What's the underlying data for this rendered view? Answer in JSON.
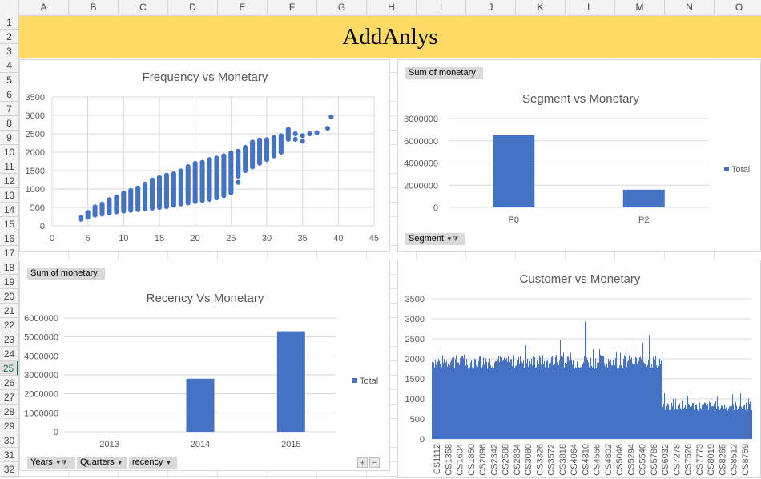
{
  "sheet": {
    "columns": [
      "A",
      "B",
      "C",
      "D",
      "E",
      "F",
      "G",
      "H",
      "I",
      "J",
      "K",
      "L",
      "M",
      "N",
      "O"
    ],
    "rows": [
      "1",
      "2",
      "3",
      "4",
      "5",
      "6",
      "7",
      "8",
      "9",
      "10",
      "11",
      "12",
      "13",
      "14",
      "15",
      "16",
      "17",
      "18",
      "19",
      "20",
      "21",
      "22",
      "23",
      "24",
      "25",
      "26",
      "27",
      "28",
      "29",
      "30",
      "31",
      "32"
    ],
    "active_row": "25",
    "banner_title": "AddAnlys",
    "banner_color": "#ffd966"
  },
  "pivot": {
    "sum_label": "Sum of monetary",
    "segment_field": "Segment",
    "years_field": "Years",
    "quarters_field": "Quarters",
    "recency_field": "recency",
    "expand_label": "+",
    "collapse_label": "−"
  },
  "chart_data": [
    {
      "type": "scatter",
      "title": "Frequency vs Monetary",
      "xlim": [
        0,
        45
      ],
      "ylim": [
        0,
        3500
      ],
      "xticks": [
        0,
        5,
        10,
        15,
        20,
        25,
        30,
        35,
        40,
        45
      ],
      "yticks": [
        0,
        500,
        1000,
        1500,
        2000,
        2500,
        3000,
        3500
      ],
      "grid": true,
      "color": "#4472c4",
      "ranges": [
        [
          4,
          180,
          250
        ],
        [
          5,
          230,
          380
        ],
        [
          6,
          290,
          520
        ],
        [
          7,
          320,
          620
        ],
        [
          8,
          350,
          720
        ],
        [
          9,
          380,
          820
        ],
        [
          10,
          400,
          920
        ],
        [
          11,
          420,
          1000
        ],
        [
          12,
          440,
          1060
        ],
        [
          13,
          460,
          1150
        ],
        [
          14,
          480,
          1250
        ],
        [
          15,
          500,
          1350
        ],
        [
          16,
          520,
          1400
        ],
        [
          17,
          560,
          1450
        ],
        [
          18,
          590,
          1520
        ],
        [
          19,
          620,
          1620
        ],
        [
          20,
          660,
          1700
        ],
        [
          21,
          690,
          1760
        ],
        [
          22,
          720,
          1820
        ],
        [
          23,
          760,
          1880
        ],
        [
          24,
          820,
          1940
        ],
        [
          25,
          900,
          1980
        ],
        [
          26,
          1350,
          2060
        ],
        [
          27,
          1500,
          2150
        ],
        [
          28,
          1600,
          2300
        ],
        [
          29,
          1700,
          2330
        ],
        [
          30,
          1800,
          2350
        ],
        [
          31,
          1900,
          2400
        ],
        [
          32,
          2000,
          2450
        ],
        [
          33,
          2350,
          2650
        ]
      ],
      "extra_points": [
        [
          22,
          800
        ],
        [
          23,
          880
        ],
        [
          24,
          1150
        ],
        [
          25,
          1200
        ],
        [
          26,
          1180
        ],
        [
          34,
          2350
        ],
        [
          34,
          2500
        ],
        [
          35,
          2300
        ],
        [
          35,
          2450
        ],
        [
          36,
          2500
        ],
        [
          37,
          2530
        ],
        [
          38.5,
          2650
        ],
        [
          39,
          2960
        ]
      ]
    },
    {
      "type": "bar",
      "title": "Segment vs Monetary",
      "categories": [
        "P0",
        "P2"
      ],
      "series": [
        {
          "name": "Total",
          "values": [
            6500000,
            1600000
          ]
        }
      ],
      "ylim": [
        0,
        8000000
      ],
      "yticks": [
        0,
        2000000,
        4000000,
        6000000,
        8000000
      ],
      "legend": "right",
      "color": "#4472c4"
    },
    {
      "type": "bar",
      "title": "Recency Vs Monetary",
      "categories": [
        "2013",
        "2014",
        "2015"
      ],
      "series": [
        {
          "name": "Total",
          "values": [
            0,
            2800000,
            5300000
          ]
        }
      ],
      "ylim": [
        0,
        6000000
      ],
      "yticks": [
        0,
        1000000,
        2000000,
        3000000,
        4000000,
        5000000,
        6000000
      ],
      "legend": "right",
      "color": "#4472c4"
    },
    {
      "type": "bar",
      "title": "Customer vs Monetary",
      "ylim": [
        0,
        3500
      ],
      "yticks": [
        0,
        500,
        1000,
        1500,
        2000,
        2500,
        3000,
        3500
      ],
      "color": "#4472c4",
      "category_labels": [
        "CS1112",
        "CS1358",
        "CS1604",
        "CS1850",
        "CS2096",
        "CS2342",
        "CS2588",
        "CS2834",
        "CS3080",
        "CS3326",
        "CS3572",
        "CS3818",
        "CS4064",
        "CS4310",
        "CS4556",
        "CS4802",
        "CS5048",
        "CS5294",
        "CS5540",
        "CS5786",
        "CS6032",
        "CS7278",
        "CS7526",
        "CS7773",
        "CS8019",
        "CS8265",
        "CS8512",
        "CS8759"
      ],
      "segments": [
        {
          "share": 0.72,
          "base": 1750,
          "spread": 650
        },
        {
          "share": 0.28,
          "base": 700,
          "spread": 450
        }
      ],
      "peaks": [
        [
          0.48,
          2930
        ],
        [
          0.68,
          2600
        ],
        [
          0.4,
          2480
        ]
      ]
    }
  ]
}
